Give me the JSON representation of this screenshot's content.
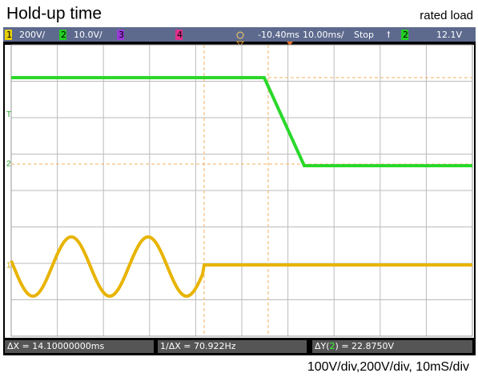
{
  "header": {
    "title": "Hold-up time",
    "note": "rated load"
  },
  "status_bar": {
    "ch1": "1",
    "ch1_scale": "200V/",
    "ch2": "2",
    "ch2_scale": "10.0V/",
    "ch3": "3",
    "ch4": "4",
    "delay": "-10.40ms",
    "timebase": "10.00ms/",
    "run_state": "Stop",
    "trigger_channel": "2",
    "trigger_level": "12.1V"
  },
  "markers": {
    "trigger": "T",
    "ch2": "2",
    "ch1": "1"
  },
  "measurements": {
    "delta_x": "ΔX = 14.10000000ms",
    "inverse_delta_x": "1/ΔX = 70.922Hz",
    "delta_y_prefix": "ΔY(",
    "delta_y_channel": "2",
    "delta_y_suffix": ") = 22.8750V"
  },
  "caption": "100V/div,200V/div, 10mS/div"
}
